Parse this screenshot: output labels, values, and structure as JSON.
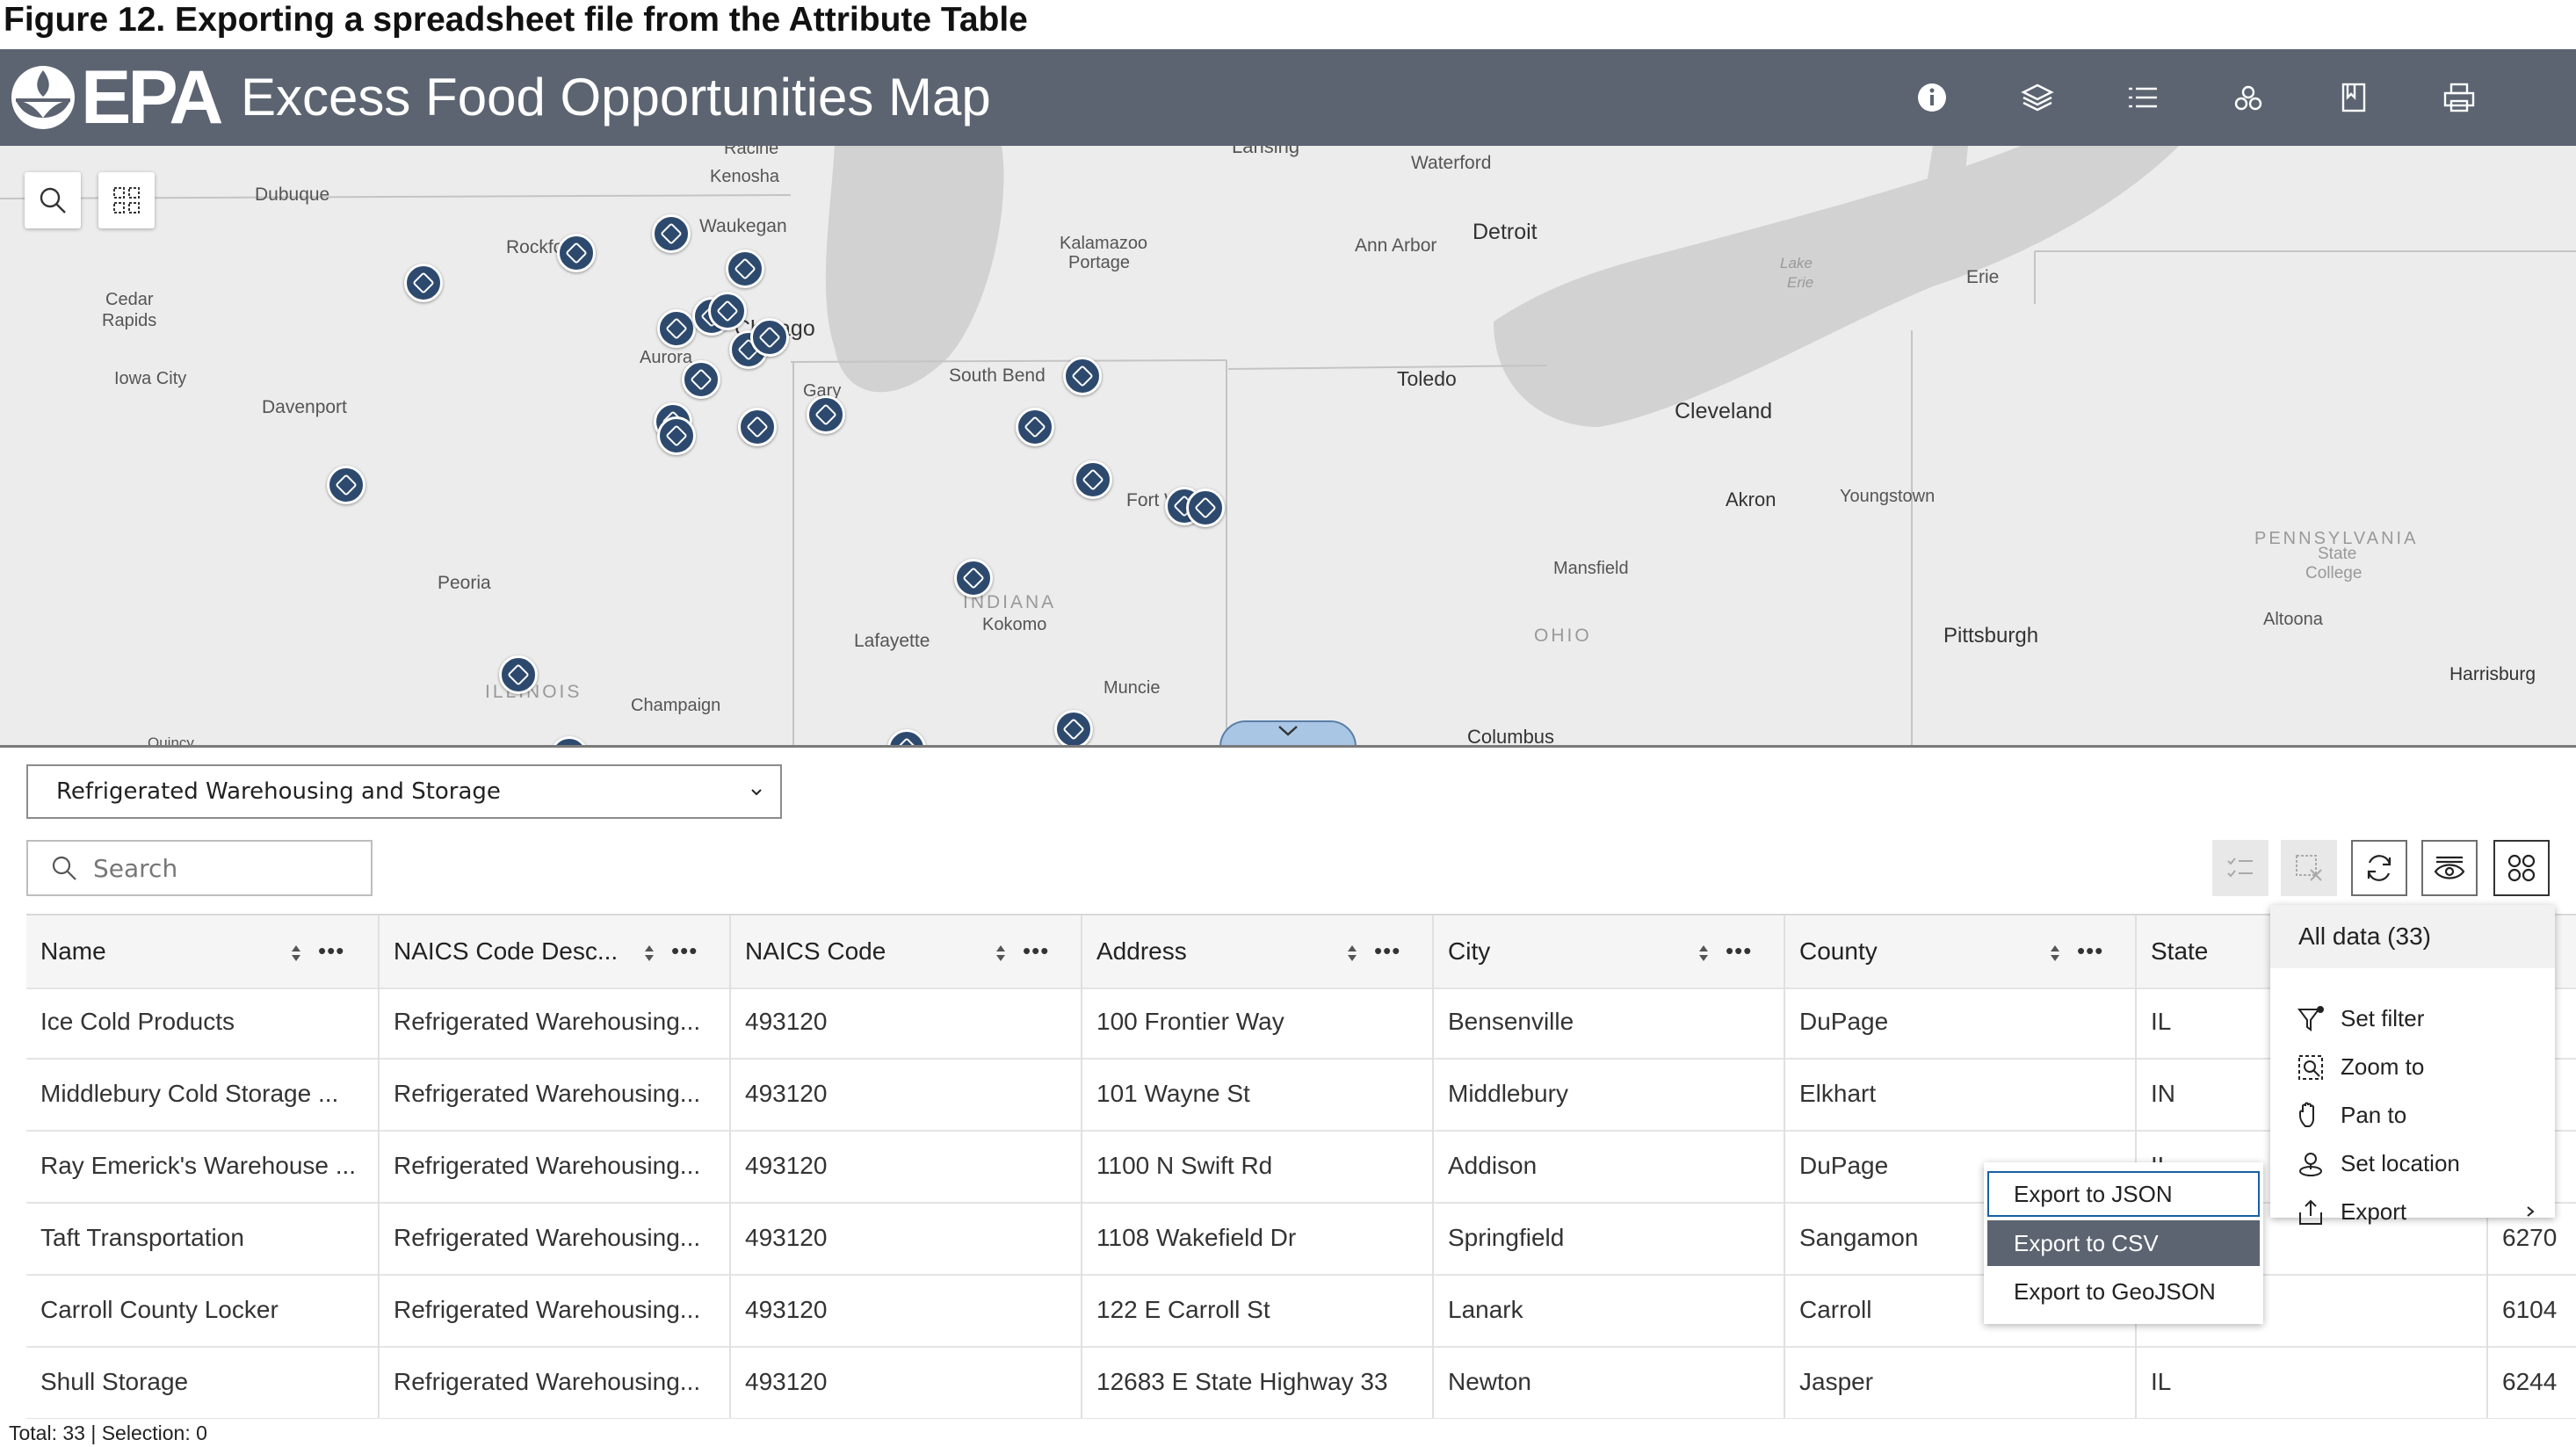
{
  "figure_caption": "Figure 12.  Exporting a spreadsheet file from the Attribute Table",
  "header": {
    "logo_text": "EPA",
    "title": "Excess Food Opportunities Map",
    "icons": [
      "info-icon",
      "layers-icon",
      "legend-list-icon",
      "basemap-icon",
      "bookmark-icon",
      "print-icon"
    ]
  },
  "map": {
    "labels": [
      "Racine",
      "Kenosha",
      "Lansing",
      "Waterford",
      "Dubuque",
      "Waukegan",
      "Rockford",
      "Kalamazoo",
      "Portage",
      "Ann Arbor",
      "Detroit",
      "Cedar",
      "Rapids",
      "Chicago",
      "Aurora",
      "Lake",
      "Erie",
      "Erie",
      "Iowa City",
      "Davenport",
      "Gary",
      "South Bend",
      "Toledo",
      "Cleveland",
      "Fort Wayne",
      "Akron",
      "Youngstown",
      "Peoria",
      "INDIANA",
      "Kokomo",
      "Lafayette",
      "Mansfield",
      "OHIO",
      "PENNSYLVANIA",
      "State",
      "College",
      "Pittsburgh",
      "Altoona",
      "ILLINOIS",
      "Champaign",
      "Muncie",
      "Harrisburg",
      "Columbus",
      "Quincy"
    ]
  },
  "attribute_table": {
    "layer_select": "Refrigerated Warehousing and Storage",
    "search_placeholder": "Search",
    "columns": [
      "Name",
      "NAICS Code Desc...",
      "NAICS Code",
      "Address",
      "City",
      "County",
      "State"
    ],
    "rows": [
      {
        "name": "Ice Cold Products",
        "naics_desc": "Refrigerated Warehousing...",
        "naics_code": "493120",
        "address": "100 Frontier Way",
        "city": "Bensenville",
        "county": "DuPage",
        "state": "IL",
        "extra": ""
      },
      {
        "name": "Middlebury Cold Storage ...",
        "naics_desc": "Refrigerated Warehousing...",
        "naics_code": "493120",
        "address": "101 Wayne St",
        "city": "Middlebury",
        "county": "Elkhart",
        "state": "IN",
        "extra": ""
      },
      {
        "name": "Ray Emerick's Warehouse ...",
        "naics_desc": "Refrigerated Warehousing...",
        "naics_code": "493120",
        "address": "1100 N Swift Rd",
        "city": "Addison",
        "county": "DuPage",
        "state": "IL",
        "extra": ""
      },
      {
        "name": "Taft Transportation",
        "naics_desc": "Refrigerated Warehousing...",
        "naics_code": "493120",
        "address": "1108 Wakefield Dr",
        "city": "Springfield",
        "county": "Sangamon",
        "state": "",
        "extra": "6270"
      },
      {
        "name": "Carroll County Locker",
        "naics_desc": "Refrigerated Warehousing...",
        "naics_code": "493120",
        "address": "122 E Carroll St",
        "city": "Lanark",
        "county": "Carroll",
        "state": "",
        "extra": "6104"
      },
      {
        "name": "Shull Storage",
        "naics_desc": "Refrigerated Warehousing...",
        "naics_code": "493120",
        "address": "12683 E State Highway 33",
        "city": "Newton",
        "county": "Jasper",
        "state": "IL",
        "extra": "6244"
      }
    ],
    "status": "Total: 33 | Selection: 0"
  },
  "options_menu": {
    "header": "All data (33)",
    "items": [
      "Set filter",
      "Zoom to",
      "Pan to",
      "Set location",
      "Export"
    ]
  },
  "export_submenu": {
    "items": [
      "Export to JSON",
      "Export to CSV",
      "Export to GeoJSON"
    ]
  },
  "colors": {
    "header_bg": "#5c6471",
    "marker": "#2d4a6e",
    "focus_border": "#1a5fa3"
  }
}
